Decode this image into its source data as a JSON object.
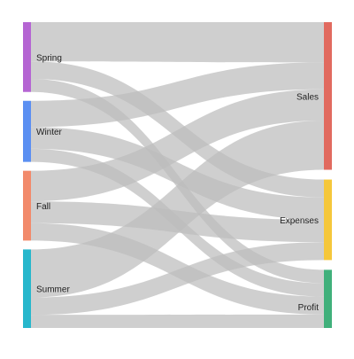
{
  "chart_data": {
    "type": "sankey",
    "title": "",
    "link_color": "#bdbdbd",
    "nodes": [
      {
        "id": "spring",
        "label": "Spring",
        "side": "left",
        "color": "#b565d3"
      },
      {
        "id": "winter",
        "label": "Winter",
        "side": "left",
        "color": "#5b8ff2"
      },
      {
        "id": "fall",
        "label": "Fall",
        "side": "left",
        "color": "#f28a6b"
      },
      {
        "id": "summer",
        "label": "Summer",
        "side": "left",
        "color": "#27b7cc"
      },
      {
        "id": "sales",
        "label": "Sales",
        "side": "right",
        "color": "#e16a5f"
      },
      {
        "id": "expenses",
        "label": "Expenses",
        "side": "right",
        "color": "#f5c73b"
      },
      {
        "id": "profit",
        "label": "Profit",
        "side": "right",
        "color": "#40b07b"
      }
    ],
    "links": [
      {
        "source": "spring",
        "target": "sales",
        "value": 45
      },
      {
        "source": "spring",
        "target": "expenses",
        "value": 20
      },
      {
        "source": "spring",
        "target": "profit",
        "value": 15
      },
      {
        "source": "winter",
        "target": "sales",
        "value": 30
      },
      {
        "source": "winter",
        "target": "expenses",
        "value": 25
      },
      {
        "source": "winter",
        "target": "profit",
        "value": 15
      },
      {
        "source": "fall",
        "target": "sales",
        "value": 35
      },
      {
        "source": "fall",
        "target": "expenses",
        "value": 25
      },
      {
        "source": "fall",
        "target": "profit",
        "value": 20
      },
      {
        "source": "summer",
        "target": "sales",
        "value": 55
      },
      {
        "source": "summer",
        "target": "expenses",
        "value": 20
      },
      {
        "source": "summer",
        "target": "profit",
        "value": 15
      }
    ]
  }
}
